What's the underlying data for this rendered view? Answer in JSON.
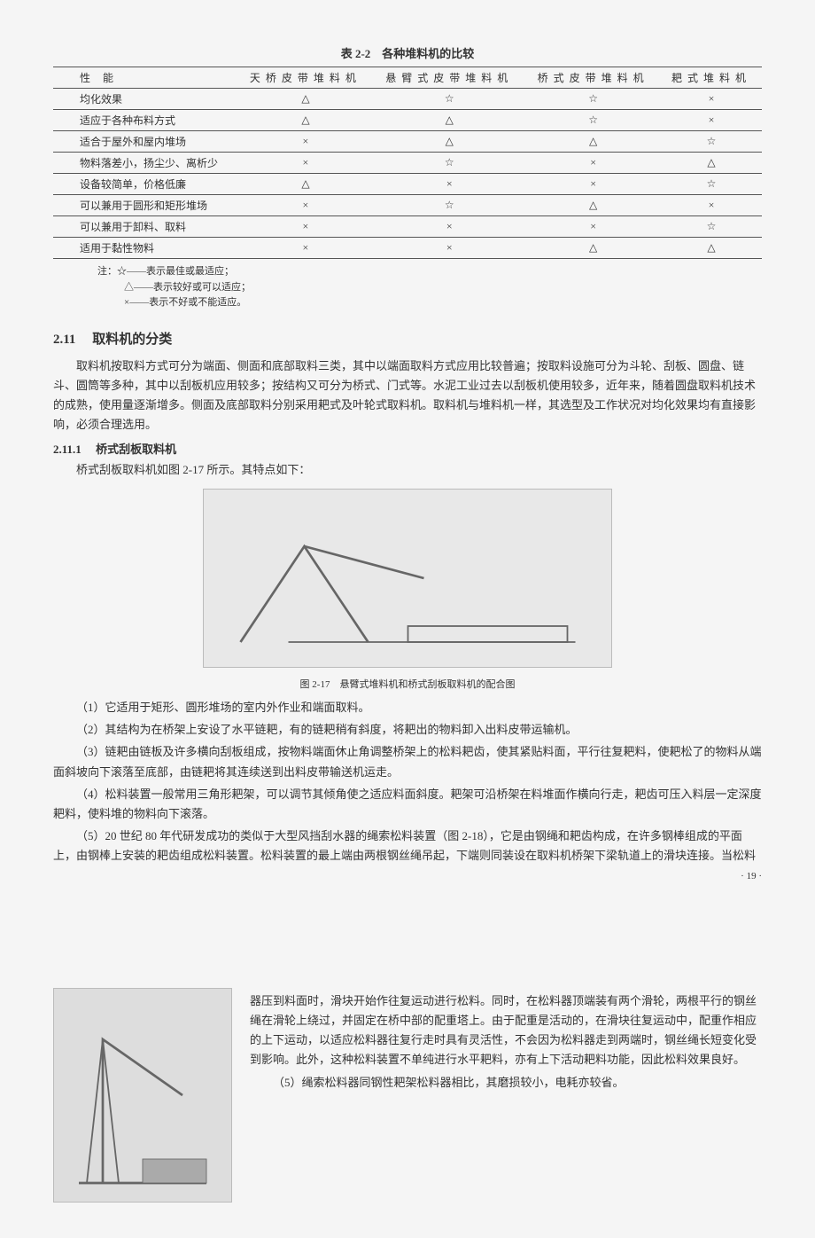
{
  "table": {
    "title": "表 2-2　各种堆料机的比较",
    "headers": [
      "性能",
      "天桥皮带堆料机",
      "悬臂式皮带堆料机",
      "桥式皮带堆料机",
      "耙式堆料机"
    ],
    "rows": [
      [
        "均化效果",
        "△",
        "☆",
        "☆",
        "×"
      ],
      [
        "适应于各种布料方式",
        "△",
        "△",
        "☆",
        "×"
      ],
      [
        "适合于屋外和屋内堆场",
        "×",
        "△",
        "△",
        "☆"
      ],
      [
        "物料落差小，扬尘少、离析少",
        "×",
        "☆",
        "×",
        "△"
      ],
      [
        "设备较简单，价格低廉",
        "△",
        "×",
        "×",
        "☆"
      ],
      [
        "可以兼用于圆形和矩形堆场",
        "×",
        "☆",
        "△",
        "×"
      ],
      [
        "可以兼用于卸料、取料",
        "×",
        "×",
        "×",
        "☆"
      ],
      [
        "适用于黏性物料",
        "×",
        "×",
        "△",
        "△"
      ]
    ],
    "notes": [
      "注：☆——表示最佳或最适应；",
      "△——表示较好或可以适应；",
      "×——表示不好或不能适应。"
    ]
  },
  "section": {
    "num": "2.11",
    "title": "取料机的分类",
    "intro": "取料机按取料方式可分为端面、侧面和底部取料三类，其中以端面取料方式应用比较普遍；按取料设施可分为斗轮、刮板、圆盘、链斗、圆筒等多种，其中以刮板机应用较多；按结构又可分为桥式、门式等。水泥工业过去以刮板机使用较多，近年来，随着圆盘取料机技术的成熟，使用量逐渐增多。侧面及底部取料分别采用耙式及叶轮式取料机。取料机与堆料机一样，其选型及工作状况对均化效果均有直接影响，必须合理选用。"
  },
  "subsection": {
    "num": "2.11.1",
    "title": "桥式刮板取料机",
    "lead": "桥式刮板取料机如图 2-17 所示。其特点如下："
  },
  "figure": {
    "caption": "图 2-17　悬臂式堆料机和桥式刮板取料机的配合图"
  },
  "items": {
    "i1": "（1）它适用于矩形、圆形堆场的室内外作业和端面取料。",
    "i2": "（2）其结构为在桥架上安设了水平链耙，有的链耙稍有斜度，将耙出的物料卸入出料皮带运输机。",
    "i3": "（3）链耙由链板及许多横向刮板组成，按物料端面休止角调整桥架上的松料耙齿，使其紧贴料面，平行往复耙料，使耙松了的物料从端面斜坡向下滚落至底部，由链耙将其连续送到出料皮带输送机运走。",
    "i4": "（4）松料装置一般常用三角形耙架，可以调节其倾角使之适应料面斜度。耙架可沿桥架在料堆面作横向行走，耙齿可压入料层一定深度耙料，使料堆的物料向下滚落。",
    "i5": "（5）20 世纪 80 年代研发成功的类似于大型风挡刮水器的绳索松料装置（图 2-18），它是由钢绳和耙齿构成，在许多钢棒组成的平面上，由钢棒上安装的耙齿组成松料装置。松料装置的最上端由两根钢丝绳吊起，下端则同装设在取料机桥架下梁轨道上的滑块连接。当松料"
  },
  "pageNum": "· 19 ·",
  "page2": {
    "p1": "器压到料面时，滑块开始作往复运动进行松料。同时，在松料器顶端装有两个滑轮，两根平行的钢丝绳在滑轮上绕过，并固定在桥中部的配重塔上。由于配重是活动的，在滑块往复运动中，配重作相应的上下运动，以适应松料器往复行走时具有灵活性，不会因为松料器走到两端时，钢丝绳长短变化受到影响。此外，这种松料装置不单纯进行水平耙料，亦有上下活动耙料功能，因此松料效果良好。",
    "p2": "（5）绳索松料器同钢性耙架松料器相比，其磨损较小，电耗亦较省。"
  }
}
